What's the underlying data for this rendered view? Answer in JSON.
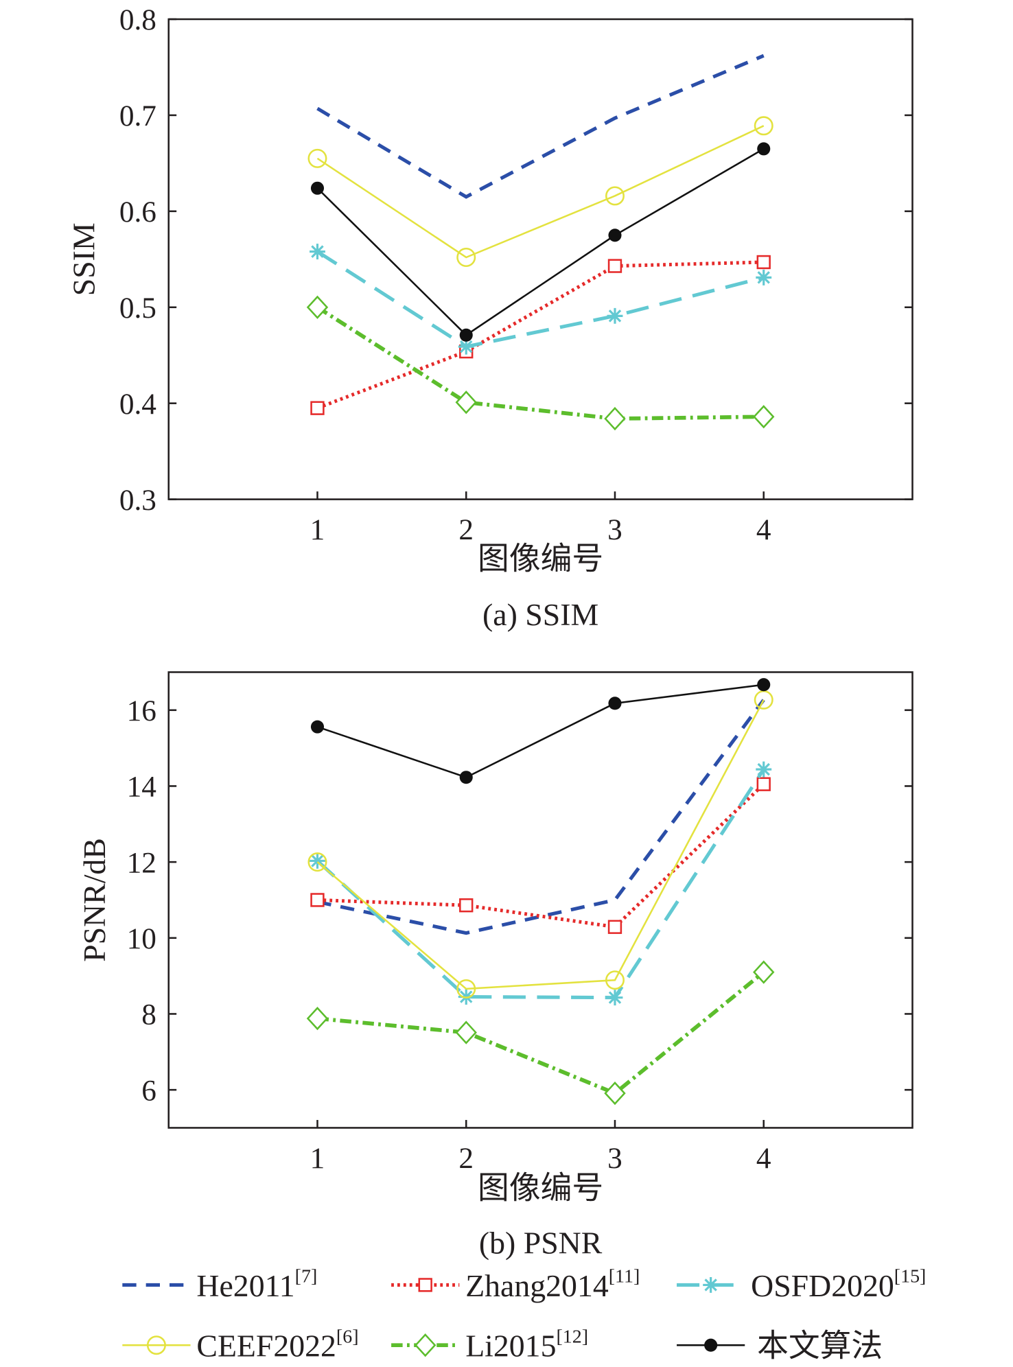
{
  "chart_data": [
    {
      "type": "line",
      "caption": "(a) SSIM",
      "xlabel": "图像编号",
      "ylabel": "SSIM",
      "x": [
        1,
        2,
        3,
        4
      ],
      "xlim": [
        0,
        5
      ],
      "ylim": [
        0.3,
        0.8
      ],
      "yticks": [
        0.3,
        0.4,
        0.5,
        0.6,
        0.7,
        0.8
      ],
      "ytick_labels": [
        "0.3",
        "0.4",
        "0.5",
        "0.6",
        "0.7",
        "0.8"
      ],
      "xtick_labels": [
        "1",
        "2",
        "3",
        "4"
      ],
      "grid": false,
      "series": [
        {
          "name": "He2011[7]",
          "values": [
            0.707,
            0.615,
            0.697,
            0.762
          ]
        },
        {
          "name": "Zhang2014[11]",
          "values": [
            0.395,
            0.454,
            0.543,
            0.547
          ]
        },
        {
          "name": "OSFD2020[15]",
          "values": [
            0.558,
            0.459,
            0.491,
            0.531
          ]
        },
        {
          "name": "CEEF2022[6]",
          "values": [
            0.655,
            0.552,
            0.616,
            0.689
          ]
        },
        {
          "name": "Li2015[12]",
          "values": [
            0.5,
            0.401,
            0.384,
            0.386
          ]
        },
        {
          "name": "本文算法",
          "values": [
            0.624,
            0.471,
            0.575,
            0.665
          ]
        }
      ]
    },
    {
      "type": "line",
      "caption": "(b) PSNR",
      "xlabel": "图像编号",
      "ylabel": "PSNR/dB",
      "x": [
        1,
        2,
        3,
        4
      ],
      "xlim": [
        0,
        5
      ],
      "ylim": [
        5,
        17
      ],
      "yticks": [
        6,
        8,
        10,
        12,
        14,
        16
      ],
      "ytick_labels": [
        "6",
        "8",
        "10",
        "12",
        "14",
        "16"
      ],
      "xtick_labels": [
        "1",
        "2",
        "3",
        "4"
      ],
      "grid": false,
      "series": [
        {
          "name": "He2011[7]",
          "values": [
            10.95,
            10.13,
            11.0,
            16.27
          ]
        },
        {
          "name": "Zhang2014[11]",
          "values": [
            11.0,
            10.86,
            10.29,
            14.05
          ]
        },
        {
          "name": "OSFD2020[15]",
          "values": [
            12.03,
            8.45,
            8.43,
            14.44
          ]
        },
        {
          "name": "CEEF2022[6]",
          "values": [
            12.0,
            8.66,
            8.89,
            16.27
          ]
        },
        {
          "name": "Li2015[12]",
          "values": [
            7.88,
            7.51,
            5.91,
            9.1
          ]
        },
        {
          "name": "本文算法",
          "values": [
            15.56,
            14.23,
            16.18,
            16.67
          ]
        }
      ]
    }
  ],
  "legend": {
    "placement": "bottom",
    "items": [
      {
        "label": "He2011",
        "ref": "[7]",
        "color": "#2b4ea8",
        "style": "dashed",
        "marker": "none"
      },
      {
        "label": "Zhang2014",
        "ref": "[11]",
        "color": "#e52a2a",
        "style": "dotted",
        "marker": "square"
      },
      {
        "label": "OSFD2020",
        "ref": "[15]",
        "color": "#62c9d2",
        "style": "long-dashed",
        "marker": "asterisk"
      },
      {
        "label": "CEEF2022",
        "ref": "[6]",
        "color": "#e3e23f",
        "style": "solid",
        "marker": "circle"
      },
      {
        "label": "Li2015",
        "ref": "[12]",
        "color": "#5cbd2c",
        "style": "dash-dot",
        "marker": "diamond"
      },
      {
        "label": "本文算法",
        "ref": "",
        "color": "#111111",
        "style": "solid",
        "marker": "filled-circle"
      }
    ]
  }
}
